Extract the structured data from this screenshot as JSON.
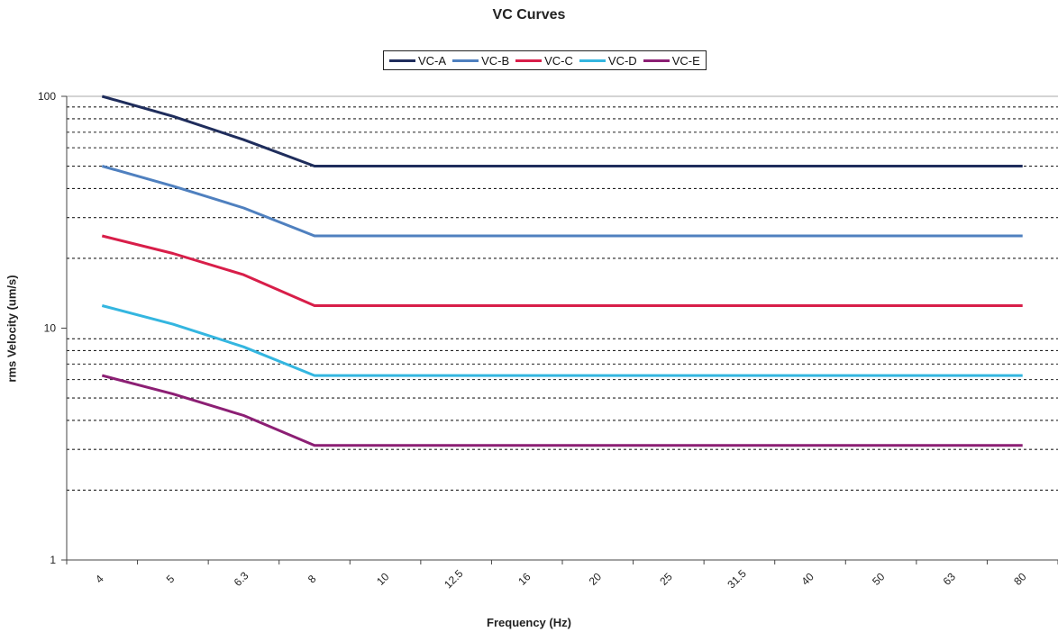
{
  "chart_data": {
    "type": "line",
    "title": "VC Curves",
    "xlabel": "Frequency (Hz)",
    "ylabel": "rms Velocity (um/s)",
    "yscale": "log",
    "ylim": [
      1,
      100
    ],
    "yticks": [
      "1",
      "10",
      "100"
    ],
    "categories": [
      "4",
      "5",
      "6.3",
      "8",
      "10",
      "12.5",
      "16",
      "20",
      "25",
      "31.5",
      "40",
      "50",
      "63",
      "80"
    ],
    "legend_position": "top-center",
    "grid": "dashed horizontal",
    "series": [
      {
        "name": "VC-A",
        "color": "#1f2d5c",
        "values": [
          100,
          82,
          65,
          50,
          50,
          50,
          50,
          50,
          50,
          50,
          50,
          50,
          50,
          50
        ]
      },
      {
        "name": "VC-B",
        "color": "#4f80bf",
        "values": [
          50,
          41,
          33,
          25,
          25,
          25,
          25,
          25,
          25,
          25,
          25,
          25,
          25,
          25
        ]
      },
      {
        "name": "VC-C",
        "color": "#d81e49",
        "values": [
          25,
          21,
          17,
          12.5,
          12.5,
          12.5,
          12.5,
          12.5,
          12.5,
          12.5,
          12.5,
          12.5,
          12.5,
          12.5
        ]
      },
      {
        "name": "VC-D",
        "color": "#34b6e0",
        "values": [
          12.5,
          10.4,
          8.3,
          6.25,
          6.25,
          6.25,
          6.25,
          6.25,
          6.25,
          6.25,
          6.25,
          6.25,
          6.25,
          6.25
        ]
      },
      {
        "name": "VC-E",
        "color": "#8c1f74",
        "values": [
          6.25,
          5.2,
          4.2,
          3.12,
          3.12,
          3.12,
          3.12,
          3.12,
          3.12,
          3.12,
          3.12,
          3.12,
          3.12,
          3.12
        ]
      }
    ]
  }
}
